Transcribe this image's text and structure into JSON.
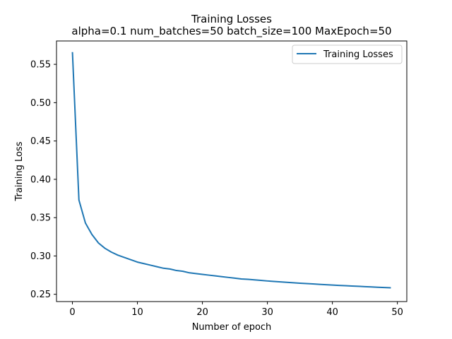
{
  "chart_data": {
    "type": "line",
    "title": "Training Losses",
    "subtitle": "alpha=0.1 num_batches=50 batch_size=100 MaxEpoch=50",
    "xlabel": "Number of epoch",
    "ylabel": "Training Loss",
    "xlim": [
      -2.45,
      51.45
    ],
    "ylim": [
      0.2405,
      0.5805
    ],
    "xticks": [
      0,
      10,
      20,
      30,
      40,
      50
    ],
    "yticks": [
      0.25,
      0.3,
      0.35,
      0.4,
      0.45,
      0.5,
      0.55
    ],
    "grid": false,
    "legend": "top-right",
    "series": [
      {
        "name": "Training Losses",
        "color": "#1f77b4",
        "x": [
          0,
          1,
          2,
          3,
          4,
          5,
          6,
          7,
          8,
          9,
          10,
          11,
          12,
          13,
          14,
          15,
          16,
          17,
          18,
          19,
          20,
          21,
          22,
          23,
          24,
          25,
          26,
          27,
          28,
          29,
          30,
          31,
          32,
          33,
          34,
          35,
          36,
          37,
          38,
          39,
          40,
          41,
          42,
          43,
          44,
          45,
          46,
          47,
          48,
          49
        ],
        "y": [
          0.566,
          0.373,
          0.343,
          0.328,
          0.317,
          0.31,
          0.305,
          0.301,
          0.298,
          0.295,
          0.292,
          0.29,
          0.288,
          0.286,
          0.284,
          0.283,
          0.281,
          0.28,
          0.278,
          0.277,
          0.276,
          0.275,
          0.274,
          0.273,
          0.272,
          0.271,
          0.27,
          0.2695,
          0.2688,
          0.2681,
          0.2674,
          0.2668,
          0.2662,
          0.2656,
          0.265,
          0.2645,
          0.264,
          0.2635,
          0.263,
          0.2625,
          0.262,
          0.2616,
          0.2612,
          0.2608,
          0.2604,
          0.26,
          0.2596,
          0.2592,
          0.2588,
          0.2585
        ]
      }
    ]
  }
}
